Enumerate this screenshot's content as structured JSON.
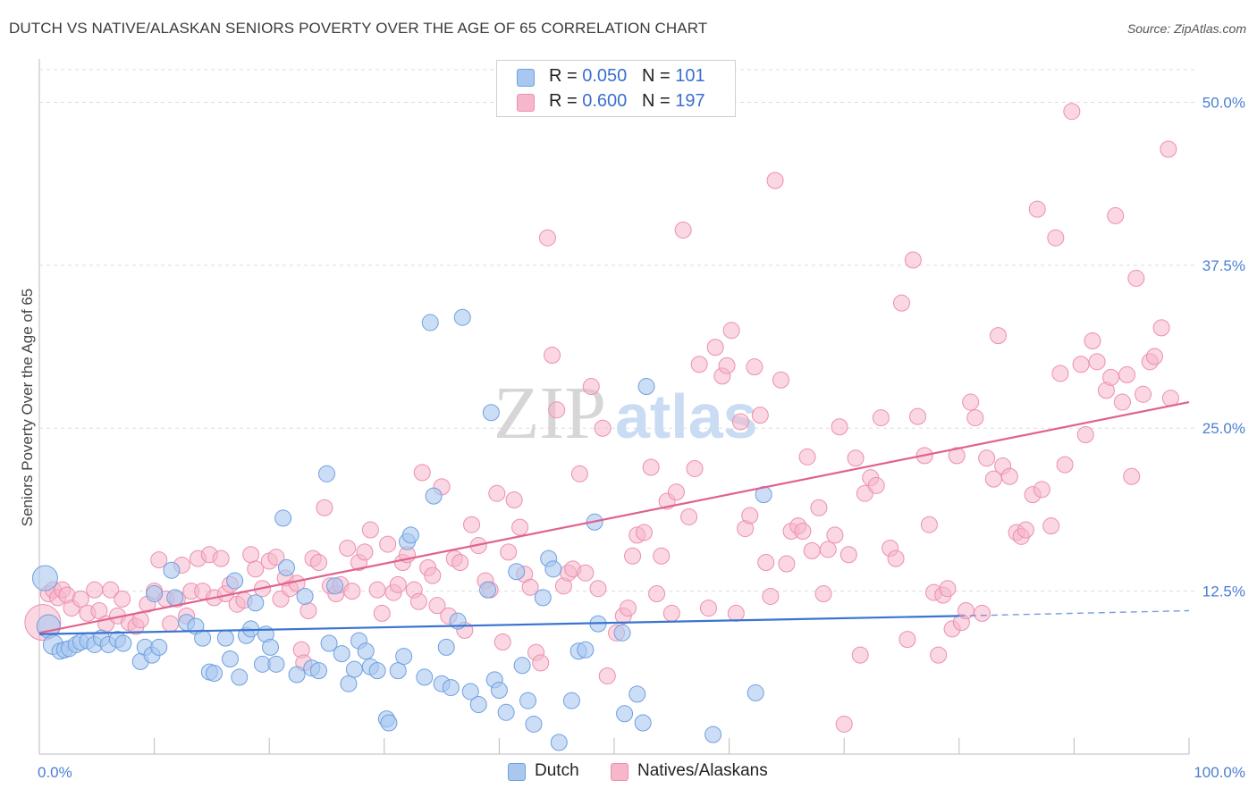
{
  "title": "DUTCH VS NATIVE/ALASKAN SENIORS POVERTY OVER THE AGE OF 65 CORRELATION CHART",
  "source": "Source: ZipAtlas.com",
  "watermark": {
    "zip": "ZIP",
    "atlas": "atlas"
  },
  "legend": {
    "series1": {
      "r_label": "R = ",
      "r_value": "0.050",
      "n_label": "N = ",
      "n_value": "101",
      "color": "#a9c8f0"
    },
    "series2": {
      "r_label": "R = ",
      "r_value": "0.600",
      "n_label": "N = ",
      "n_value": "197",
      "color": "#f6b7cb"
    }
  },
  "bottom_legend": {
    "dutch": "Dutch",
    "natives": "Natives/Alaskans"
  },
  "colors": {
    "dutch_fill": "#a9c8f0",
    "dutch_stroke": "#6f9fe0",
    "dutch_line": "#3a74d0",
    "native_fill": "#f6b7cb",
    "native_stroke": "#ec8fae",
    "native_line": "#e0628e",
    "tick_label": "#4a7fd4",
    "grid": "#dddddd"
  },
  "chart_data": {
    "type": "scatter",
    "title": "DUTCH VS NATIVE/ALASKAN SENIORS POVERTY OVER THE AGE OF 65 CORRELATION CHART",
    "xlabel": "",
    "ylabel": "Seniors Poverty Over the Age of 65",
    "xlim": [
      0,
      100
    ],
    "ylim": [
      0,
      52.5
    ],
    "x_tick_labels": [
      "0.0%",
      "100.0%"
    ],
    "y_ticks": [
      12.5,
      25.0,
      37.5,
      50.0
    ],
    "y_tick_labels": [
      "12.5%",
      "25.0%",
      "37.5%",
      "50.0%"
    ],
    "grid": "horizontal dashed",
    "legend_placement": "top-center",
    "series": [
      {
        "name": "Dutch",
        "R": 0.05,
        "N": 101,
        "trend": {
          "x": [
            0,
            80
          ],
          "y": [
            9.2,
            10.6
          ],
          "dashed_to": [
            100,
            11.0
          ]
        },
        "points": [
          [
            0.5,
            13.5
          ],
          [
            0.8,
            9.8
          ],
          [
            1.2,
            8.4
          ],
          [
            1.8,
            7.9
          ],
          [
            2.2,
            8.0
          ],
          [
            2.6,
            8.1
          ],
          [
            3.2,
            8.4
          ],
          [
            3.6,
            8.6
          ],
          [
            4.2,
            8.7
          ],
          [
            4.8,
            8.4
          ],
          [
            5.4,
            8.9
          ],
          [
            6.0,
            8.4
          ],
          [
            6.8,
            8.8
          ],
          [
            7.3,
            8.5
          ],
          [
            8.8,
            7.1
          ],
          [
            9.2,
            8.2
          ],
          [
            9.8,
            7.6
          ],
          [
            10.4,
            8.2
          ],
          [
            10.0,
            12.3
          ],
          [
            11.5,
            14.1
          ],
          [
            11.8,
            12.0
          ],
          [
            12.8,
            10.1
          ],
          [
            13.6,
            9.8
          ],
          [
            14.2,
            8.9
          ],
          [
            14.8,
            6.3
          ],
          [
            15.2,
            6.2
          ],
          [
            16.2,
            8.9
          ],
          [
            16.6,
            7.3
          ],
          [
            17.0,
            13.3
          ],
          [
            17.4,
            5.9
          ],
          [
            18.0,
            9.1
          ],
          [
            18.4,
            9.6
          ],
          [
            18.8,
            11.6
          ],
          [
            19.4,
            6.9
          ],
          [
            19.7,
            9.2
          ],
          [
            20.1,
            8.2
          ],
          [
            20.6,
            6.9
          ],
          [
            21.2,
            18.1
          ],
          [
            21.5,
            14.3
          ],
          [
            22.4,
            6.1
          ],
          [
            23.1,
            12.1
          ],
          [
            23.7,
            6.6
          ],
          [
            24.3,
            6.4
          ],
          [
            25.2,
            8.5
          ],
          [
            25.7,
            12.9
          ],
          [
            26.3,
            7.7
          ],
          [
            26.9,
            5.4
          ],
          [
            27.4,
            6.5
          ],
          [
            27.8,
            8.7
          ],
          [
            28.4,
            7.9
          ],
          [
            28.8,
            6.7
          ],
          [
            29.4,
            6.4
          ],
          [
            25.0,
            21.5
          ],
          [
            30.2,
            2.7
          ],
          [
            30.4,
            2.4
          ],
          [
            31.2,
            6.4
          ],
          [
            31.7,
            7.5
          ],
          [
            32.0,
            16.3
          ],
          [
            32.3,
            16.8
          ],
          [
            33.5,
            5.9
          ],
          [
            34.0,
            33.1
          ],
          [
            34.3,
            19.8
          ],
          [
            35.0,
            5.4
          ],
          [
            35.4,
            8.2
          ],
          [
            35.8,
            5.1
          ],
          [
            36.4,
            10.2
          ],
          [
            36.8,
            33.5
          ],
          [
            37.5,
            4.8
          ],
          [
            38.2,
            3.8
          ],
          [
            39.0,
            12.6
          ],
          [
            39.3,
            26.2
          ],
          [
            39.6,
            5.7
          ],
          [
            40.0,
            4.9
          ],
          [
            40.6,
            3.2
          ],
          [
            41.5,
            14.0
          ],
          [
            42.0,
            6.8
          ],
          [
            42.5,
            4.1
          ],
          [
            43.0,
            2.3
          ],
          [
            43.8,
            12.0
          ],
          [
            44.3,
            15.0
          ],
          [
            44.7,
            14.2
          ],
          [
            45.2,
            0.9
          ],
          [
            46.3,
            4.1
          ],
          [
            46.9,
            7.9
          ],
          [
            47.5,
            8.0
          ],
          [
            48.3,
            17.8
          ],
          [
            48.6,
            10.0
          ],
          [
            50.7,
            9.3
          ],
          [
            50.9,
            3.1
          ],
          [
            52.0,
            4.6
          ],
          [
            52.5,
            2.4
          ],
          [
            52.8,
            28.2
          ],
          [
            58.6,
            1.5
          ],
          [
            62.3,
            4.7
          ],
          [
            63.0,
            19.9
          ]
        ]
      },
      {
        "name": "Natives/Alaskans",
        "R": 0.6,
        "N": 197,
        "trend": {
          "x": [
            0,
            100
          ],
          "y": [
            9.3,
            27.0
          ]
        },
        "points": [
          [
            0.3,
            10.1
          ],
          [
            0.8,
            12.3
          ],
          [
            1.2,
            12.6
          ],
          [
            1.6,
            12.0
          ],
          [
            2.0,
            12.6
          ],
          [
            2.4,
            12.2
          ],
          [
            2.8,
            11.2
          ],
          [
            3.6,
            11.9
          ],
          [
            4.2,
            10.8
          ],
          [
            4.8,
            12.6
          ],
          [
            5.2,
            11.0
          ],
          [
            5.8,
            10.0
          ],
          [
            6.2,
            12.6
          ],
          [
            6.8,
            10.6
          ],
          [
            7.2,
            11.9
          ],
          [
            7.8,
            10.1
          ],
          [
            8.4,
            9.8
          ],
          [
            8.8,
            10.3
          ],
          [
            9.4,
            11.5
          ],
          [
            10.0,
            12.5
          ],
          [
            10.4,
            14.9
          ],
          [
            11.0,
            11.9
          ],
          [
            11.4,
            10.0
          ],
          [
            12.0,
            11.9
          ],
          [
            12.4,
            14.5
          ],
          [
            12.8,
            10.6
          ],
          [
            13.2,
            12.5
          ],
          [
            13.8,
            15.0
          ],
          [
            14.2,
            12.5
          ],
          [
            14.8,
            15.3
          ],
          [
            15.2,
            12.0
          ],
          [
            15.8,
            15.0
          ],
          [
            16.2,
            12.3
          ],
          [
            16.6,
            13.0
          ],
          [
            17.2,
            11.5
          ],
          [
            17.8,
            11.8
          ],
          [
            18.4,
            15.3
          ],
          [
            18.8,
            14.2
          ],
          [
            19.4,
            12.7
          ],
          [
            20.0,
            14.8
          ],
          [
            20.6,
            15.1
          ],
          [
            21.0,
            11.9
          ],
          [
            21.4,
            13.5
          ],
          [
            21.8,
            12.7
          ],
          [
            22.4,
            13.1
          ],
          [
            22.8,
            8.0
          ],
          [
            23.0,
            7.0
          ],
          [
            23.4,
            11.0
          ],
          [
            23.8,
            15.0
          ],
          [
            24.3,
            14.7
          ],
          [
            24.8,
            18.9
          ],
          [
            25.3,
            12.9
          ],
          [
            25.8,
            12.3
          ],
          [
            26.2,
            13.0
          ],
          [
            26.8,
            15.8
          ],
          [
            27.2,
            12.5
          ],
          [
            27.8,
            14.7
          ],
          [
            28.3,
            15.5
          ],
          [
            28.8,
            17.2
          ],
          [
            29.4,
            12.6
          ],
          [
            29.8,
            10.8
          ],
          [
            30.3,
            16.1
          ],
          [
            30.8,
            12.4
          ],
          [
            31.2,
            13.0
          ],
          [
            31.6,
            14.7
          ],
          [
            32.0,
            15.3
          ],
          [
            32.6,
            12.6
          ],
          [
            33.0,
            11.7
          ],
          [
            33.3,
            21.6
          ],
          [
            33.8,
            14.3
          ],
          [
            34.2,
            13.7
          ],
          [
            34.6,
            11.4
          ],
          [
            35.0,
            20.5
          ],
          [
            35.6,
            10.6
          ],
          [
            36.1,
            15.0
          ],
          [
            36.6,
            14.7
          ],
          [
            37.0,
            9.5
          ],
          [
            37.6,
            17.6
          ],
          [
            38.2,
            16.0
          ],
          [
            38.8,
            13.3
          ],
          [
            39.2,
            12.6
          ],
          [
            39.8,
            20.0
          ],
          [
            40.3,
            8.6
          ],
          [
            40.8,
            15.5
          ],
          [
            41.3,
            19.5
          ],
          [
            41.8,
            17.4
          ],
          [
            42.2,
            13.8
          ],
          [
            42.7,
            12.8
          ],
          [
            43.2,
            7.8
          ],
          [
            43.6,
            7.0
          ],
          [
            44.2,
            39.6
          ],
          [
            44.6,
            30.6
          ],
          [
            45.0,
            26.4
          ],
          [
            45.6,
            12.9
          ],
          [
            46.0,
            13.9
          ],
          [
            46.4,
            14.2
          ],
          [
            47.0,
            21.5
          ],
          [
            47.5,
            13.9
          ],
          [
            48.0,
            28.2
          ],
          [
            48.6,
            12.7
          ],
          [
            49.0,
            25.0
          ],
          [
            49.4,
            6.0
          ],
          [
            50.2,
            9.3
          ],
          [
            50.8,
            10.6
          ],
          [
            51.2,
            11.2
          ],
          [
            51.6,
            15.2
          ],
          [
            52.0,
            16.8
          ],
          [
            52.6,
            17.0
          ],
          [
            53.2,
            22.0
          ],
          [
            53.7,
            12.3
          ],
          [
            54.1,
            15.2
          ],
          [
            54.6,
            19.4
          ],
          [
            55.0,
            10.8
          ],
          [
            55.4,
            20.1
          ],
          [
            56.0,
            40.2
          ],
          [
            56.5,
            18.2
          ],
          [
            57.0,
            21.9
          ],
          [
            57.4,
            29.9
          ],
          [
            58.2,
            11.2
          ],
          [
            58.8,
            31.2
          ],
          [
            59.4,
            29.0
          ],
          [
            59.8,
            29.8
          ],
          [
            60.2,
            32.5
          ],
          [
            60.6,
            10.8
          ],
          [
            61.0,
            25.5
          ],
          [
            61.4,
            17.3
          ],
          [
            61.8,
            18.3
          ],
          [
            62.2,
            29.7
          ],
          [
            62.7,
            26.0
          ],
          [
            63.2,
            14.7
          ],
          [
            63.6,
            12.1
          ],
          [
            64.0,
            44.0
          ],
          [
            64.5,
            28.7
          ],
          [
            65.0,
            14.6
          ],
          [
            65.4,
            17.1
          ],
          [
            66.0,
            17.5
          ],
          [
            66.4,
            17.1
          ],
          [
            66.8,
            22.8
          ],
          [
            67.2,
            15.6
          ],
          [
            67.8,
            18.9
          ],
          [
            68.2,
            12.3
          ],
          [
            68.6,
            15.7
          ],
          [
            69.2,
            16.8
          ],
          [
            69.6,
            25.1
          ],
          [
            70.0,
            2.3
          ],
          [
            70.4,
            15.3
          ],
          [
            71.0,
            22.7
          ],
          [
            71.4,
            7.6
          ],
          [
            71.8,
            20.0
          ],
          [
            72.3,
            21.2
          ],
          [
            72.8,
            20.6
          ],
          [
            73.2,
            25.8
          ],
          [
            74.0,
            15.8
          ],
          [
            74.5,
            15.0
          ],
          [
            75.0,
            34.6
          ],
          [
            75.5,
            8.8
          ],
          [
            76.0,
            37.9
          ],
          [
            76.4,
            25.9
          ],
          [
            77.0,
            22.9
          ],
          [
            77.4,
            17.6
          ],
          [
            77.8,
            12.4
          ],
          [
            78.2,
            7.6
          ],
          [
            78.6,
            12.2
          ],
          [
            79.0,
            12.7
          ],
          [
            79.4,
            9.6
          ],
          [
            79.8,
            22.9
          ],
          [
            80.2,
            10.1
          ],
          [
            80.6,
            11.0
          ],
          [
            81.0,
            27.0
          ],
          [
            81.4,
            25.8
          ],
          [
            82.0,
            10.8
          ],
          [
            82.4,
            22.7
          ],
          [
            83.0,
            21.1
          ],
          [
            83.4,
            32.1
          ],
          [
            83.8,
            22.1
          ],
          [
            84.4,
            21.3
          ],
          [
            85.0,
            17.0
          ],
          [
            85.4,
            16.7
          ],
          [
            85.8,
            17.2
          ],
          [
            86.4,
            19.9
          ],
          [
            86.8,
            41.8
          ],
          [
            87.2,
            20.3
          ],
          [
            88.0,
            17.5
          ],
          [
            88.4,
            39.6
          ],
          [
            88.8,
            29.2
          ],
          [
            89.2,
            22.2
          ],
          [
            89.8,
            49.3
          ],
          [
            90.6,
            29.9
          ],
          [
            91.0,
            24.5
          ],
          [
            91.6,
            31.7
          ],
          [
            92.0,
            30.1
          ],
          [
            92.8,
            27.9
          ],
          [
            93.2,
            28.9
          ],
          [
            93.6,
            41.3
          ],
          [
            94.2,
            27.0
          ],
          [
            94.6,
            29.1
          ],
          [
            95.0,
            21.3
          ],
          [
            95.4,
            36.5
          ],
          [
            96.0,
            27.6
          ],
          [
            96.6,
            30.1
          ],
          [
            97.0,
            30.5
          ],
          [
            97.6,
            32.7
          ],
          [
            98.2,
            46.4
          ],
          [
            98.4,
            27.3
          ]
        ]
      }
    ]
  }
}
